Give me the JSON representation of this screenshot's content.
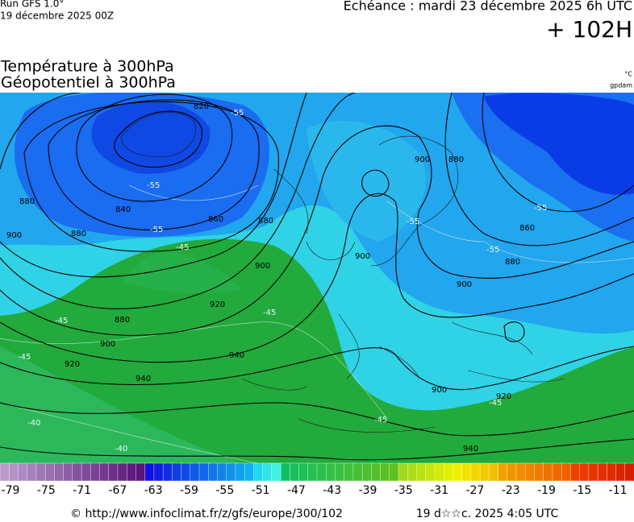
{
  "header": {
    "run": "Run GFS 1.0°",
    "run_date": "19 décembre 2025 00Z",
    "echeance": "Echéance : mardi 23 décembre 2025 6h UTC",
    "lead": "+ 102H",
    "title_line1": "Température à 300hPa",
    "title_line2": "Géopotentiel à 300hPa",
    "unit_temperature": "°C",
    "unit_geopotential": "gpdam"
  },
  "map": {
    "geopotential_labels": [
      "820",
      "840",
      "860",
      "880",
      "900",
      "920",
      "880",
      "900",
      "920",
      "940",
      "940",
      "900",
      "880",
      "860",
      "880",
      "900",
      "900",
      "900",
      "920",
      "940",
      "880",
      "900",
      "880"
    ],
    "temperature_labels": [
      "-55",
      "-55",
      "-55",
      "-45",
      "-45",
      "-45",
      "-45",
      "-40",
      "-40",
      "-55",
      "-55",
      "-55",
      "-45",
      "-45"
    ]
  },
  "colorbar": {
    "labels": [
      "-79",
      "-75",
      "-71",
      "-67",
      "-63",
      "-59",
      "-55",
      "-51",
      "-47",
      "-43",
      "-39",
      "-35",
      "-31",
      "-27",
      "-23",
      "-19",
      "-15",
      "-11"
    ]
  },
  "footer": {
    "source": "© http://www.infoclimat.fr/z/gfs/europe/300/102",
    "generated": "19 d☆☆c. 2025  4:05 UTC"
  }
}
